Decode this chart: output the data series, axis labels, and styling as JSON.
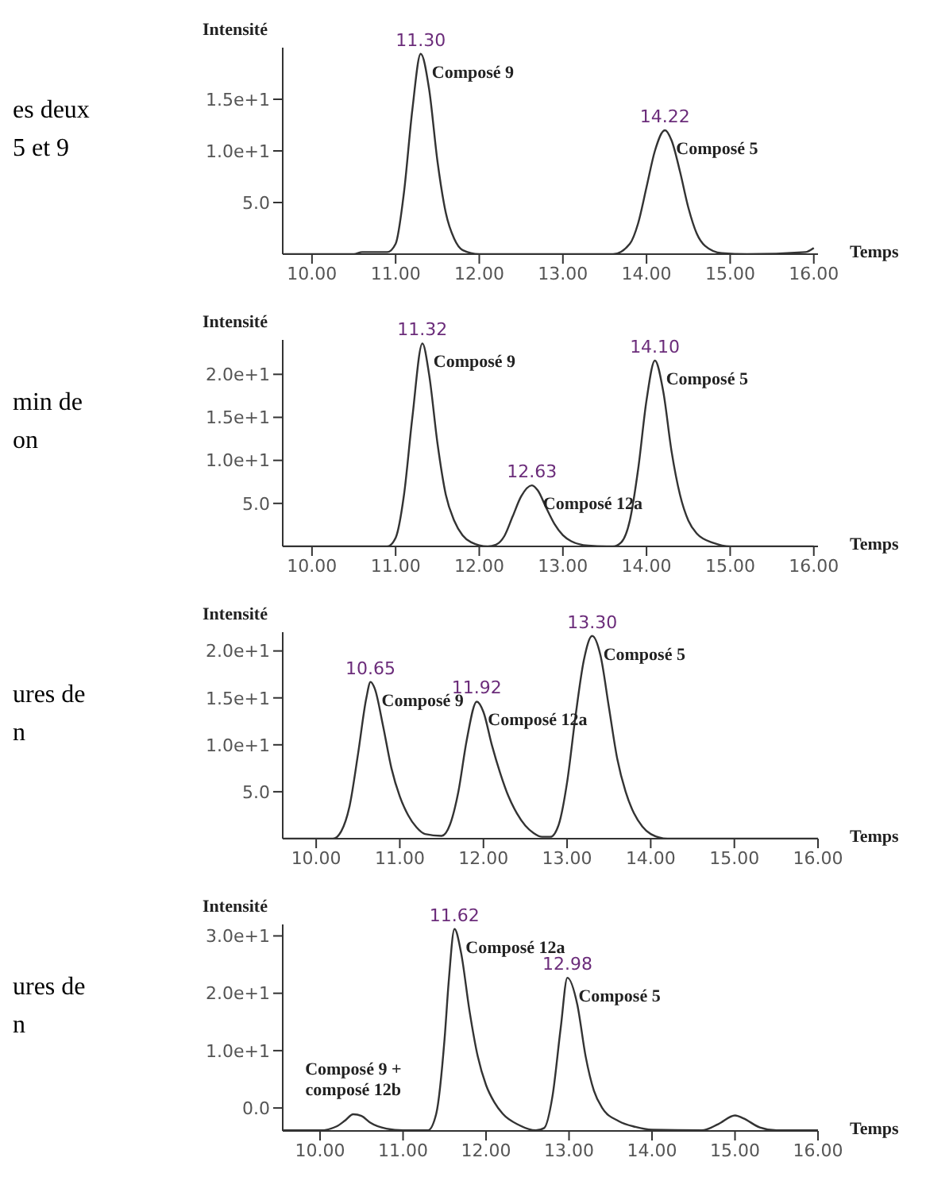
{
  "chart_data": [
    {
      "type": "line",
      "xlabel": "Temps",
      "ylabel": "Intensité",
      "xlim": [
        9.65,
        16.05
      ],
      "ylim": [
        0,
        20
      ],
      "xticks": [
        {
          "value": 10,
          "label": "10.00"
        },
        {
          "value": 11,
          "label": "11.00"
        },
        {
          "value": 12,
          "label": "12.00"
        },
        {
          "value": 13,
          "label": "13.00"
        },
        {
          "value": 14,
          "label": "14.00"
        },
        {
          "value": 15,
          "label": "15.00"
        },
        {
          "value": 16,
          "label": "16.00"
        }
      ],
      "yticks": [
        {
          "value": 5,
          "label": "5.0"
        },
        {
          "value": 10,
          "label": "1.0e+1"
        },
        {
          "value": 15,
          "label": "1.5e+1"
        }
      ],
      "grid": false,
      "legend": false,
      "marker": "none",
      "series": [
        {
          "color": "#333333",
          "x": [
            9.65,
            10.5,
            10.6,
            10.9,
            11.0,
            11.1,
            11.2,
            11.3,
            11.4,
            11.5,
            11.6,
            11.7,
            11.8,
            12.0,
            13.6,
            13.8,
            13.9,
            14.0,
            14.1,
            14.22,
            14.3,
            14.4,
            14.5,
            14.6,
            14.7,
            14.9,
            15.2,
            15.9,
            16.0
          ],
          "values": [
            0,
            0,
            0.2,
            0.2,
            1.0,
            6,
            14,
            19.4,
            16,
            9,
            4,
            1.5,
            0.4,
            0,
            0,
            1.0,
            3,
            6.5,
            10,
            12.0,
            11,
            8,
            4.5,
            2,
            0.8,
            0.1,
            0,
            0.2,
            0.6
          ]
        }
      ],
      "annotations": [
        "es deux",
        "5 et 9",
        {
          "text": "11.30",
          "x": 11.3,
          "y": 19.4
        },
        {
          "text": "Composé 9",
          "x": 11.3,
          "y": 19.4
        },
        {
          "text": "14.22",
          "x": 14.22,
          "y": 12.0
        },
        {
          "text": "Composé 5",
          "x": 14.22,
          "y": 12.0
        }
      ]
    },
    {
      "type": "line",
      "xlabel": "Temps",
      "ylabel": "Intensité",
      "xlim": [
        9.65,
        16.05
      ],
      "ylim": [
        0,
        24
      ],
      "xticks": [
        {
          "value": 10,
          "label": "10.00"
        },
        {
          "value": 11,
          "label": "11.00"
        },
        {
          "value": 12,
          "label": "12.00"
        },
        {
          "value": 13,
          "label": "13.00"
        },
        {
          "value": 14,
          "label": "14.00"
        },
        {
          "value": 15,
          "label": "15.00"
        },
        {
          "value": 16,
          "label": "16.00"
        }
      ],
      "yticks": [
        {
          "value": 5,
          "label": "5.0"
        },
        {
          "value": 10,
          "label": "1.0e+1"
        },
        {
          "value": 15,
          "label": "1.5e+1"
        },
        {
          "value": 20,
          "label": "2.0e+1"
        }
      ],
      "grid": false,
      "legend": false,
      "marker": "none",
      "series": [
        {
          "color": "#333333",
          "x": [
            9.65,
            10.9,
            11.0,
            11.1,
            11.2,
            11.32,
            11.4,
            11.5,
            11.6,
            11.7,
            11.8,
            11.9,
            12.1,
            12.2,
            12.3,
            12.4,
            12.5,
            12.63,
            12.7,
            12.8,
            12.9,
            13.0,
            13.1,
            13.3,
            13.6,
            13.7,
            13.8,
            13.9,
            14.0,
            14.1,
            14.2,
            14.3,
            14.4,
            14.5,
            14.6,
            14.8,
            15.0,
            16.0
          ],
          "values": [
            0,
            0,
            1,
            6,
            15,
            23.6,
            20,
            12,
            6,
            3,
            1.3,
            0.5,
            0,
            0.2,
            1.2,
            3.5,
            5.8,
            7.1,
            6.5,
            4.5,
            2.6,
            1.3,
            0.6,
            0.1,
            0,
            0.5,
            3,
            9,
            17,
            21.6,
            18,
            11,
            6,
            3,
            1.5,
            0.4,
            0,
            0
          ]
        }
      ],
      "annotations": [
        "min de",
        "on",
        {
          "text": "11.32",
          "x": 11.32,
          "y": 23.6
        },
        {
          "text": "Composé 9",
          "x": 11.32,
          "y": 23.6
        },
        {
          "text": "12.63",
          "x": 12.63,
          "y": 7.1
        },
        {
          "text": "Composé 12a",
          "x": 12.63,
          "y": 7.1
        },
        {
          "text": "14.10",
          "x": 14.1,
          "y": 21.6
        },
        {
          "text": "Composé 5",
          "x": 14.1,
          "y": 21.6
        }
      ]
    },
    {
      "type": "line",
      "xlabel": "Temps",
      "ylabel": "Intensité",
      "xlim": [
        9.6,
        16.0
      ],
      "ylim": [
        0,
        22
      ],
      "xticks": [
        {
          "value": 10,
          "label": "10.00"
        },
        {
          "value": 11,
          "label": "11.00"
        },
        {
          "value": 12,
          "label": "12.00"
        },
        {
          "value": 13,
          "label": "13.00"
        },
        {
          "value": 14,
          "label": "14.00"
        },
        {
          "value": 15,
          "label": "15.00"
        },
        {
          "value": 16,
          "label": "16.00"
        }
      ],
      "yticks": [
        {
          "value": 5,
          "label": "5.0"
        },
        {
          "value": 10,
          "label": "1.0e+1"
        },
        {
          "value": 15,
          "label": "1.5e+1"
        },
        {
          "value": 20,
          "label": "2.0e+1"
        }
      ],
      "grid": false,
      "legend": false,
      "marker": "none",
      "series": [
        {
          "color": "#333333",
          "x": [
            9.6,
            10.2,
            10.3,
            10.4,
            10.5,
            10.6,
            10.65,
            10.7,
            10.8,
            10.9,
            11.0,
            11.1,
            11.2,
            11.3,
            11.5,
            11.6,
            11.7,
            11.8,
            11.92,
            12.0,
            12.1,
            12.2,
            12.3,
            12.4,
            12.5,
            12.6,
            12.7,
            12.8,
            12.9,
            13.0,
            13.1,
            13.2,
            13.3,
            13.4,
            13.5,
            13.6,
            13.7,
            13.8,
            13.9,
            14.0,
            14.2,
            16.0
          ],
          "values": [
            0,
            0,
            0.8,
            3.5,
            9,
            15,
            16.7,
            16,
            12,
            7.5,
            4.5,
            2.5,
            1.2,
            0.5,
            0.3,
            1.5,
            5,
            10.5,
            14.6,
            13.5,
            10,
            7,
            4.5,
            2.7,
            1.4,
            0.6,
            0.2,
            0.2,
            1.5,
            6,
            13,
            19,
            21.6,
            19.5,
            14,
            8.5,
            5,
            2.7,
            1.3,
            0.5,
            0,
            0
          ]
        }
      ],
      "annotations": [
        "ures de",
        "n",
        {
          "text": "10.65",
          "x": 10.65,
          "y": 16.7
        },
        {
          "text": "Composé 9",
          "x": 10.65,
          "y": 16.7
        },
        {
          "text": "11.92",
          "x": 11.92,
          "y": 14.6
        },
        {
          "text": "Composé 12a",
          "x": 11.92,
          "y": 14.6
        },
        {
          "text": "13.30",
          "x": 13.3,
          "y": 21.6
        },
        {
          "text": "Composé 5",
          "x": 13.3,
          "y": 21.6
        }
      ]
    },
    {
      "type": "line",
      "xlabel": "Temps",
      "ylabel": "Intensité",
      "xlim": [
        9.55,
        16.0
      ],
      "ylim": [
        -4,
        32
      ],
      "xticks": [
        {
          "value": 10,
          "label": "10.00"
        },
        {
          "value": 11,
          "label": "11.00"
        },
        {
          "value": 12,
          "label": "12.00"
        },
        {
          "value": 13,
          "label": "13.00"
        },
        {
          "value": 14,
          "label": "14.00"
        },
        {
          "value": 15,
          "label": "15.00"
        },
        {
          "value": 16,
          "label": "16.00"
        }
      ],
      "yticks": [
        {
          "value": 0,
          "label": "0.0"
        },
        {
          "value": 10,
          "label": "1.0e+1"
        },
        {
          "value": 20,
          "label": "2.0e+1"
        },
        {
          "value": 30,
          "label": "3.0e+1"
        }
      ],
      "grid": false,
      "legend": false,
      "marker": "none",
      "series": [
        {
          "color": "#333333",
          "x": [
            9.55,
            10.0,
            10.2,
            10.3,
            10.4,
            10.5,
            10.6,
            10.8,
            11.0,
            11.3,
            11.4,
            11.5,
            11.55,
            11.62,
            11.7,
            11.8,
            11.9,
            12.0,
            12.1,
            12.2,
            12.4,
            12.6,
            12.7,
            12.8,
            12.9,
            12.98,
            13.1,
            13.2,
            13.3,
            13.4,
            13.6,
            13.8,
            14.0,
            14.6,
            14.8,
            15.0,
            15.1,
            15.3,
            15.5,
            16.0
          ],
          "values": [
            -3.9,
            -3.9,
            -3.2,
            -2.2,
            -1.1,
            -1.4,
            -2.5,
            -3.6,
            -3.9,
            -3.9,
            -1,
            12,
            22,
            31.2,
            27,
            17,
            9,
            4,
            1,
            -1,
            -3,
            -3.9,
            -3.5,
            2,
            14,
            22.7,
            18,
            9,
            3,
            0,
            -2.3,
            -3.3,
            -3.8,
            -3.9,
            -2.8,
            -1.3,
            -1.8,
            -3.4,
            -3.9,
            -3.9
          ]
        }
      ],
      "annotations": [
        "ures de",
        "n",
        {
          "text": "11.62",
          "x": 11.62,
          "y": 31.2
        },
        {
          "text": "Composé 12a",
          "x": 11.62,
          "y": 31.2
        },
        {
          "text": "12.98",
          "x": 12.98,
          "y": 22.7
        },
        {
          "text": "Composé 5",
          "x": 12.98,
          "y": 22.7
        },
        {
          "text": "Composé 9 + composé 12b",
          "x": 10.4,
          "y": -1.1
        }
      ]
    }
  ]
}
